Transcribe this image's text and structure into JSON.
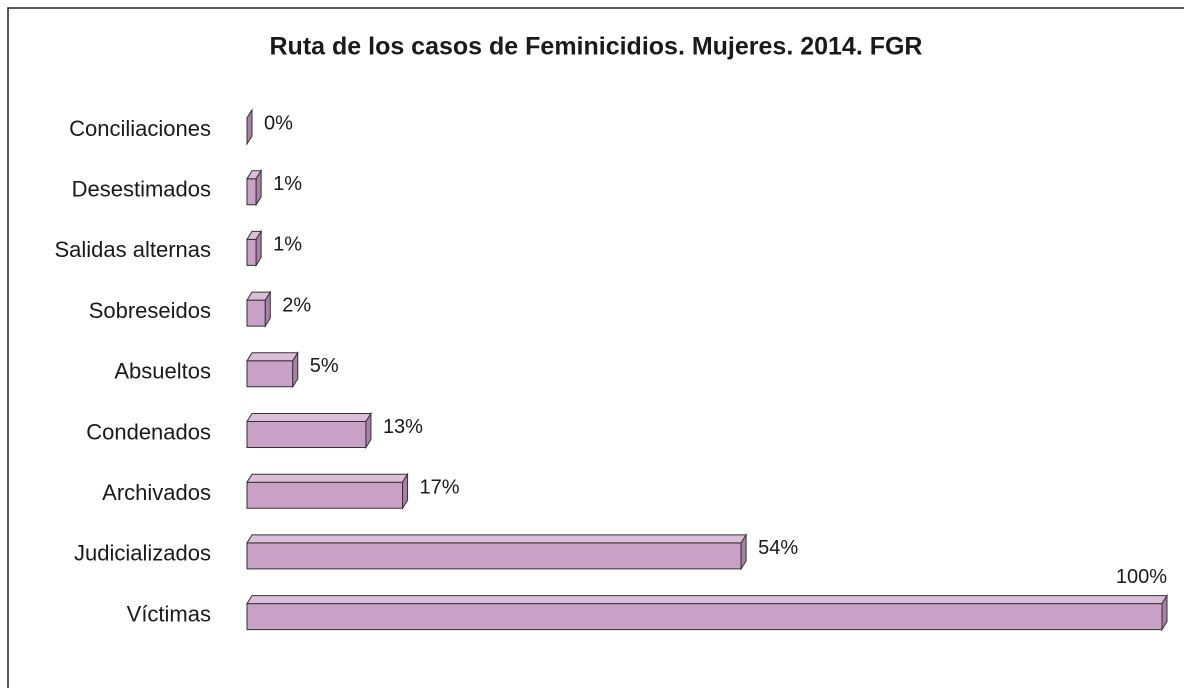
{
  "chart_data": {
    "type": "bar3d_horizontal",
    "title": "Ruta de los casos de Feminicidios. Mujeres. 2014. FGR",
    "categories": [
      "Conciliaciones",
      "Desestimados",
      "Salidas alternas",
      "Sobreseidos",
      "Absueltos",
      "Condenados",
      "Archivados",
      "Judicializados",
      "Víctimas"
    ],
    "values": [
      0,
      1,
      1,
      2,
      5,
      13,
      17,
      54,
      100
    ],
    "value_labels": [
      "0%",
      "1%",
      "1%",
      "2%",
      "5%",
      "13%",
      "17%",
      "54%",
      "100%"
    ],
    "color": "#c9a0c6",
    "xlim": [
      0,
      100
    ]
  }
}
